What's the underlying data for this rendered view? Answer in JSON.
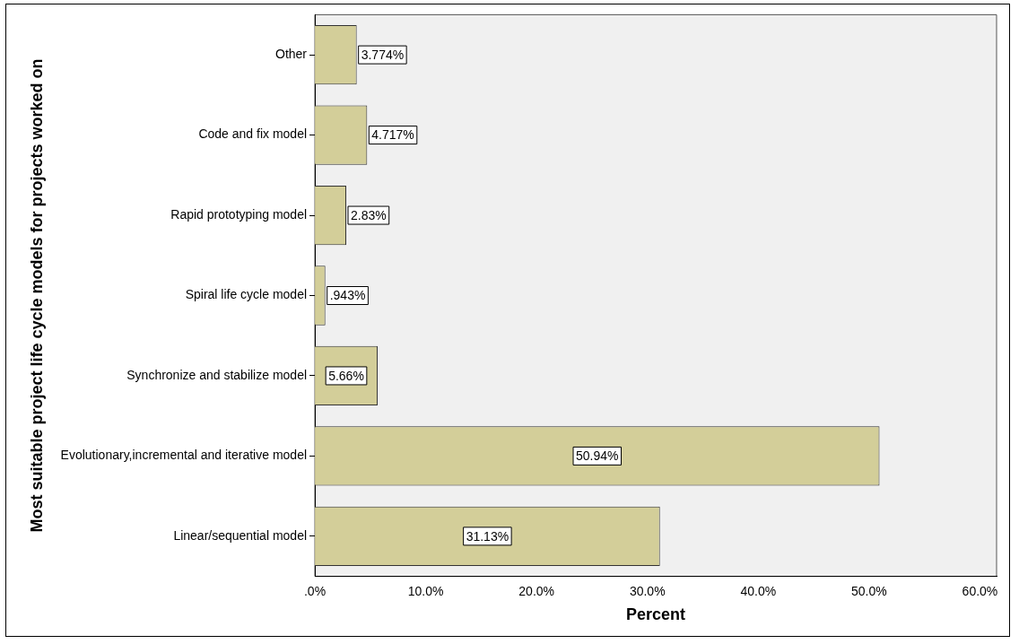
{
  "chart_data": {
    "type": "bar",
    "orientation": "horizontal",
    "xlabel": "Percent",
    "ylabel": "Most suitable project life cycle models for projects worked on",
    "categories": [
      "Other",
      "Code and fix model",
      "Rapid prototyping model",
      "Spiral life cycle model",
      "Synchronize and stabilize model",
      "Evolutionary,incremental and iterative model",
      "Linear/sequential model"
    ],
    "values": [
      3.774,
      4.717,
      2.83,
      0.943,
      5.66,
      50.94,
      31.13
    ],
    "value_labels": [
      "3.774%",
      "4.717%",
      "2.83%",
      ".943%",
      "5.66%",
      "50.94%",
      "31.13%"
    ],
    "color": "#d3ce99",
    "xlim": [
      0,
      61.5
    ],
    "xticks": [
      {
        "value": 0,
        "label": ".0%"
      },
      {
        "value": 10,
        "label": "10.0%"
      },
      {
        "value": 20,
        "label": "20.0%"
      },
      {
        "value": 30,
        "label": "30.0%"
      },
      {
        "value": 40,
        "label": "40.0%"
      },
      {
        "value": 50,
        "label": "50.0%"
      },
      {
        "value": 60,
        "label": "60.0%"
      }
    ],
    "grid": false,
    "legend": false
  }
}
